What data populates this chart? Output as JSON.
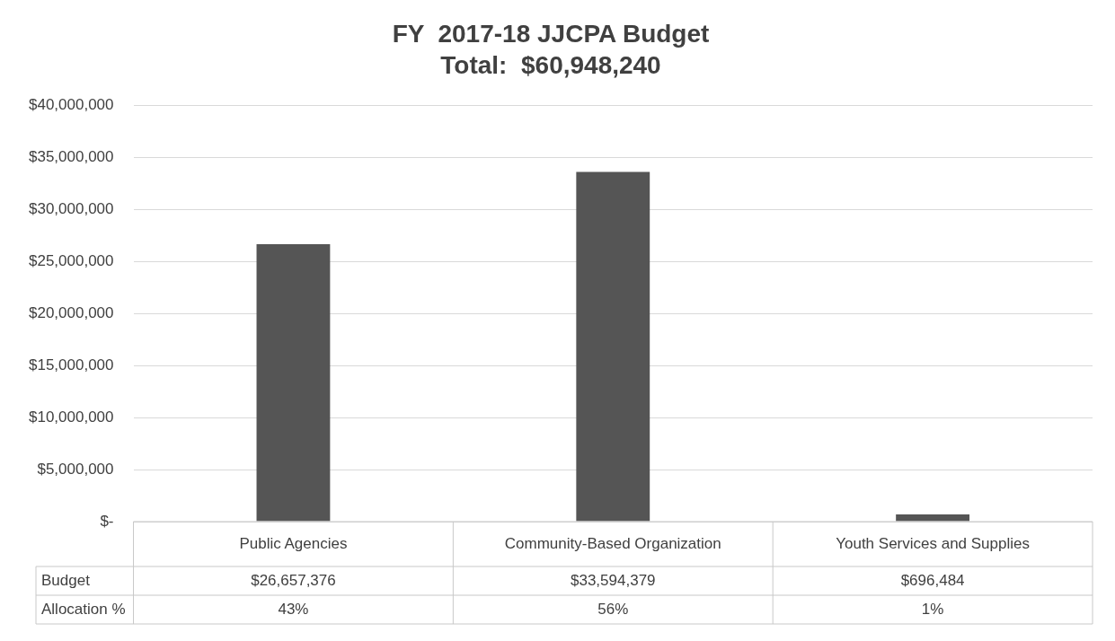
{
  "chart_data": {
    "type": "bar",
    "title": "FY  2017-18 JJCPA Budget",
    "subtitle": "Total:  $60,948,240",
    "categories": [
      "Public Agencies",
      "Community-Based Organization",
      "Youth Services and Supplies"
    ],
    "series": [
      {
        "name": "Budget",
        "color": "#555555",
        "values": [
          26657376,
          33594379,
          696484
        ],
        "value_labels": [
          "$26,657,376",
          "$33,594,379",
          "$696,484"
        ]
      }
    ],
    "ylim": [
      0,
      40000000
    ],
    "yticks": [
      {
        "value": 0,
        "label": "$-"
      },
      {
        "value": 5000000,
        "label": "$5,000,000"
      },
      {
        "value": 10000000,
        "label": "$10,000,000"
      },
      {
        "value": 15000000,
        "label": "$15,000,000"
      },
      {
        "value": 20000000,
        "label": "$20,000,000"
      },
      {
        "value": 25000000,
        "label": "$25,000,000"
      },
      {
        "value": 30000000,
        "label": "$30,000,000"
      },
      {
        "value": 35000000,
        "label": "$35,000,000"
      },
      {
        "value": 40000000,
        "label": "$40,000,000"
      }
    ],
    "grid": "y",
    "legend": false,
    "annotations": [
      "Allocation %",
      "43%",
      "56%",
      "1%"
    ]
  }
}
